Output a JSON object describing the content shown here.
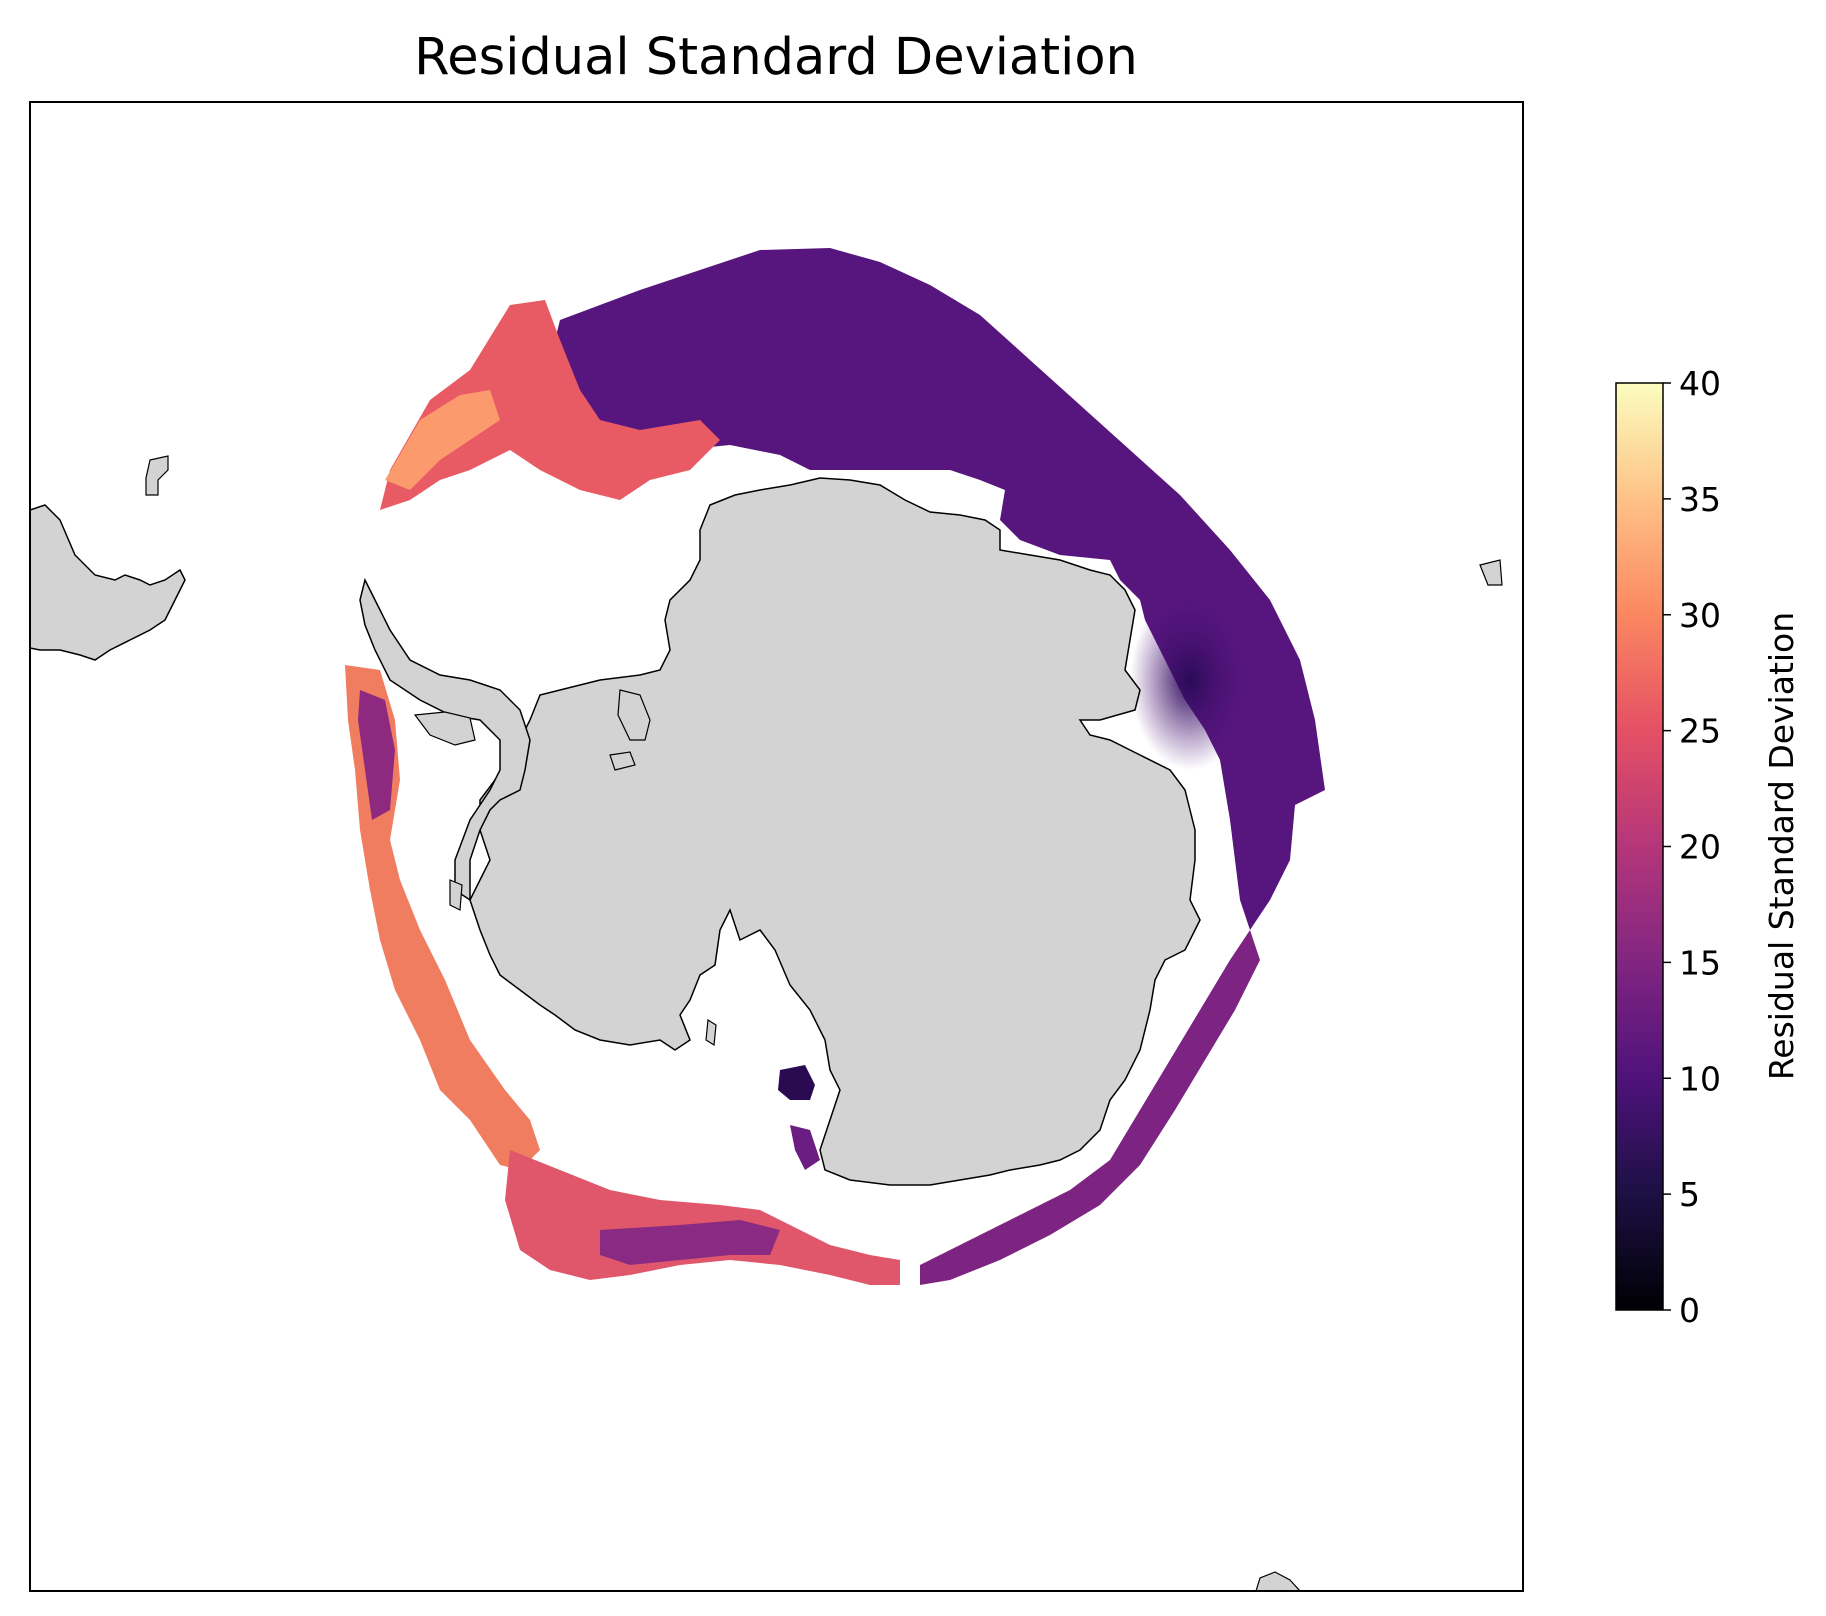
{
  "title": "Residual Standard Deviation",
  "colorbar": {
    "label": "Residual Standard Deviation",
    "colormap": "magma",
    "range": [
      0,
      40
    ],
    "ticks": [
      "0",
      "5",
      "10",
      "15",
      "20",
      "25",
      "30",
      "35",
      "40"
    ],
    "stops": [
      "#000004",
      "#1c1044",
      "#4f127b",
      "#812581",
      "#b5367a",
      "#e55064",
      "#fb8761",
      "#fec287",
      "#fcfdbf"
    ]
  },
  "map": {
    "projection": "south-polar-stereographic",
    "land_color": "#d3d3d3",
    "coastline_color": "#000000",
    "ocean_color": "#ffffff"
  },
  "chart_data": {
    "type": "heatmap",
    "title": "Residual Standard Deviation",
    "colorbar_label": "Residual Standard Deviation",
    "vmin": 0,
    "vmax": 40,
    "ticks": [
      0,
      5,
      10,
      15,
      20,
      25,
      30,
      35,
      40
    ],
    "colors": {
      "low_region": "#4f127b",
      "mid_region": "#b5367a",
      "high_region": "#fb8761",
      "very_high_region": "#fec287"
    }
  }
}
